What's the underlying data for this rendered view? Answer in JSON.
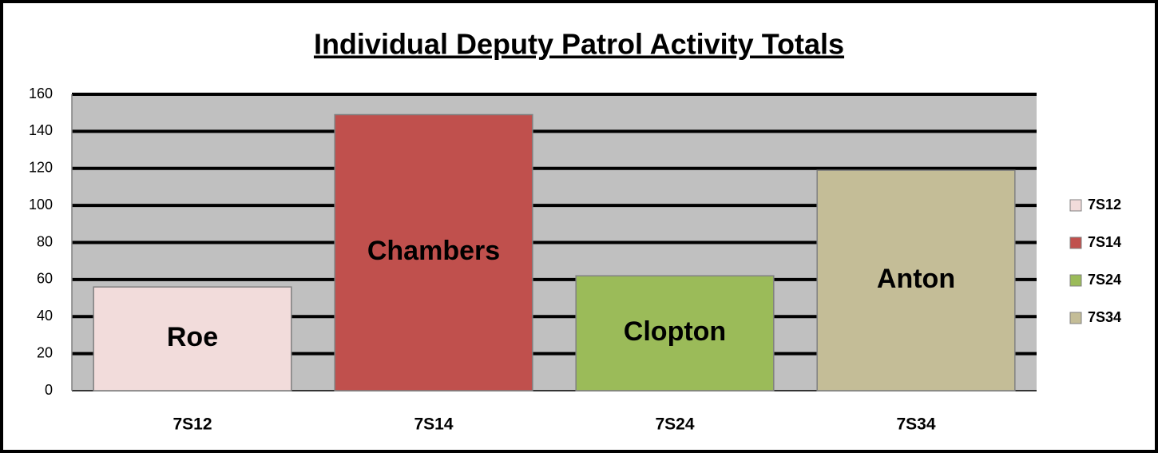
{
  "chart_data": {
    "type": "bar",
    "title": "Individual Deputy Patrol Activity Totals",
    "categories": [
      "7S12",
      "7S14",
      "7S24",
      "7S34"
    ],
    "values": [
      56,
      149,
      62,
      119
    ],
    "annotations": [
      "Roe",
      "Chambers",
      "Clopton",
      "Anton"
    ],
    "colors": [
      "#f2dcdb",
      "#c0504d",
      "#9bbb59",
      "#c4bd97"
    ],
    "ylim": [
      0,
      160
    ],
    "yticks": [
      0,
      20,
      40,
      60,
      80,
      100,
      120,
      140,
      160
    ],
    "grid": true,
    "legend": "right"
  }
}
